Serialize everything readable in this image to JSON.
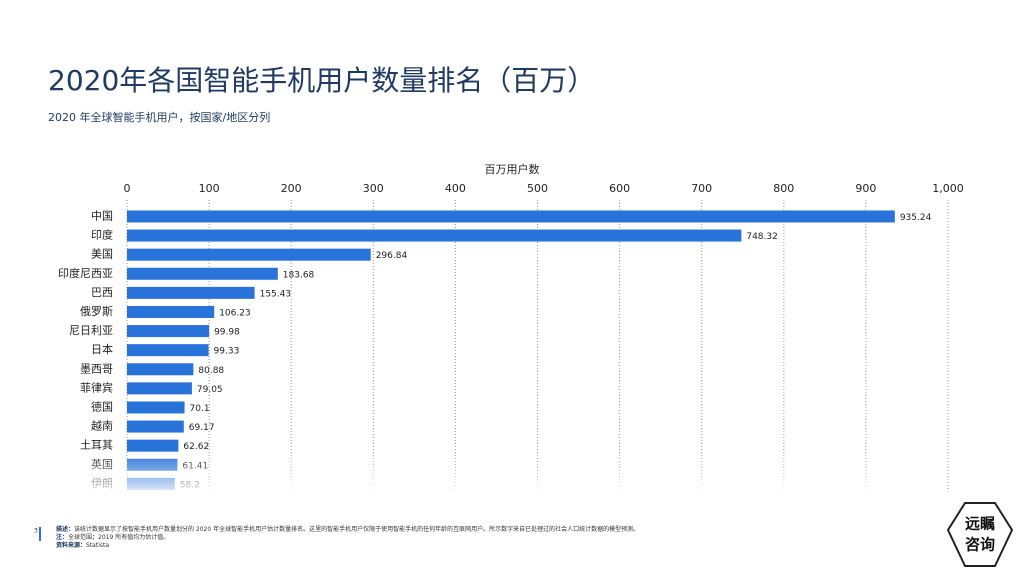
{
  "chart_data": {
    "type": "bar",
    "orientation": "horizontal",
    "title": "2020年各国智能手机用户数量排名（百万）",
    "subtitle": "2020 年全球智能手机用户，按国家/地区分列",
    "x_label": "百万用户数",
    "categories": [
      "中国",
      "印度",
      "美国",
      "印度尼西亚",
      "巴西",
      "俄罗斯",
      "尼日利亚",
      "日本",
      "墨西哥",
      "菲律宾",
      "德国",
      "越南",
      "土耳其",
      "英国",
      "伊朗"
    ],
    "values": [
      935.24,
      748.32,
      296.84,
      183.68,
      155.43,
      106.23,
      99.98,
      99.33,
      80.88,
      79.05,
      70.1,
      69.17,
      62.62,
      61.41,
      58.2
    ],
    "color": "#2872d9",
    "xlim": [
      0,
      1000
    ],
    "xticks": [
      0,
      100,
      200,
      300,
      400,
      500,
      600,
      700,
      800,
      900,
      {
        "value": 1000,
        "label": "1,000"
      }
    ],
    "grid": true
  },
  "footer": {
    "page": "3",
    "description_label": "描述：",
    "description": "该统计数据显示了按智能手机用户数量划分的 2020 年全球智能手机用户估计数量排名。这里的智能手机用户仅限于使用智能手机的任何年龄的互联网用户。所示数字来自已处理过的社会人口统计数据的模型预测。",
    "note_label": "注：",
    "note": "全球范围；2019 所有值均为估计值。",
    "source_label": "资料来源：",
    "source": "Statista"
  },
  "logo": {
    "line1": "远瞩",
    "line2": "咨询"
  }
}
